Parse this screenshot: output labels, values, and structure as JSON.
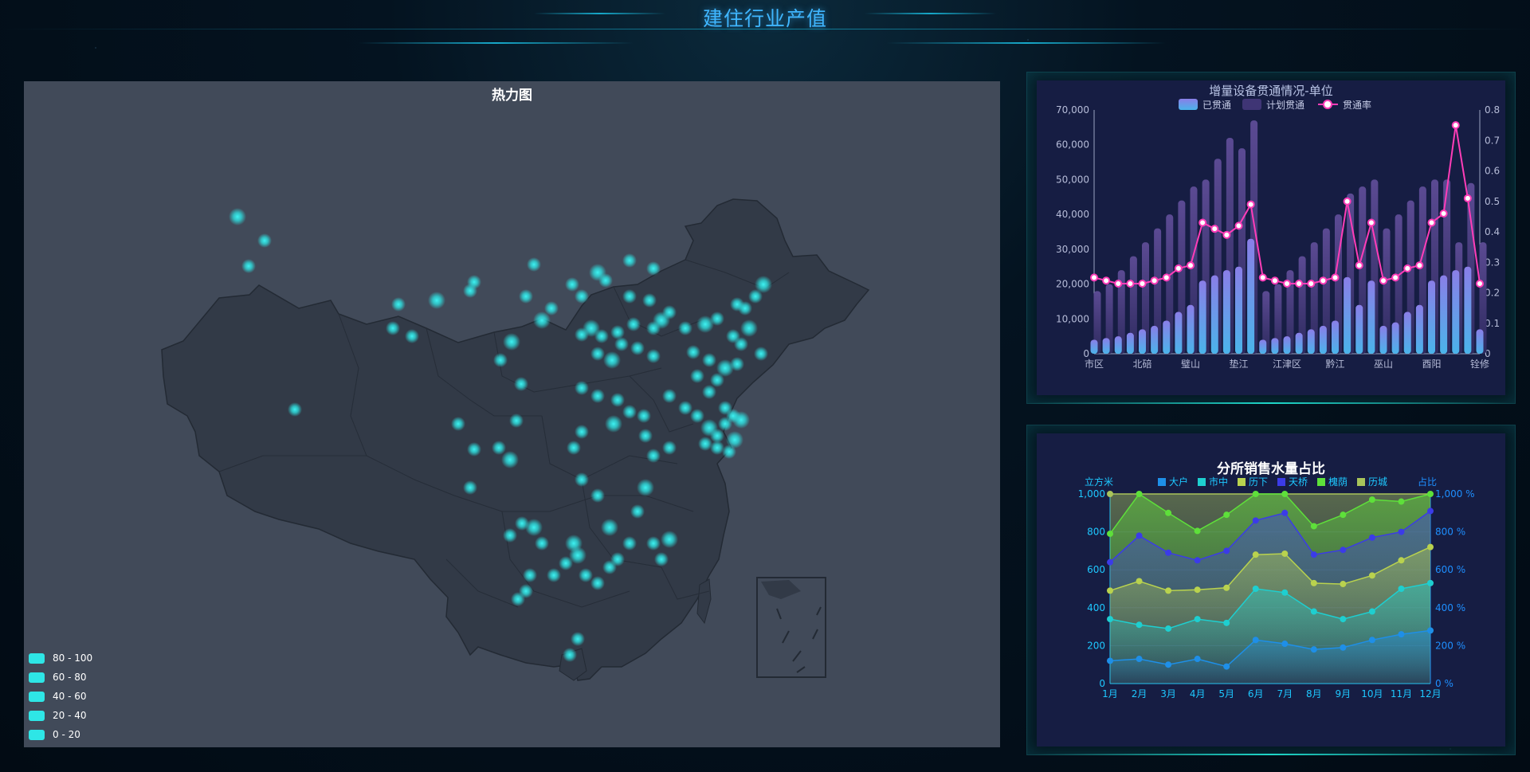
{
  "header": {
    "title": "建住行业产值"
  },
  "map": {
    "title": "热力图",
    "legend": [
      "80 - 100",
      "60 - 80",
      "40 - 60",
      "20 - 40",
      "0 - 20"
    ],
    "heat_color": "#2ee6e6",
    "land_color": "#323a47",
    "background": "#414a59"
  },
  "chart1": {
    "title": "增量设备贯通情况-单位",
    "legend": [
      "已贯通",
      "计划贯通",
      "贯通率"
    ],
    "colors": {
      "done": "#5aa7e6",
      "plan": "#4a3d7a",
      "rate": "#ff3db8"
    },
    "chart_data": {
      "type": "bar",
      "x_tick_labels": [
        "市区",
        "北碚",
        "璧山",
        "垫江",
        "江津区",
        "黔江",
        "巫山",
        "酉阳",
        "铨修"
      ],
      "ylim": [
        0,
        70000
      ],
      "y_ticks": [
        "0",
        "10,000",
        "20,000",
        "30,000",
        "40,000",
        "50,000",
        "60,000",
        "70,000"
      ],
      "y2lim": [
        0,
        0.8
      ],
      "y2_ticks": [
        "0",
        "0.1",
        "0.2",
        "0.3",
        "0.4",
        "0.5",
        "0.6",
        "0.7",
        "0.8"
      ],
      "series": [
        {
          "name": "已贯通",
          "type": "bar",
          "values": [
            4000,
            4500,
            5000,
            6000,
            7000,
            8000,
            9500,
            12000,
            14000,
            21000,
            22500,
            24000,
            25000,
            33000,
            4000,
            4500,
            5000,
            6000,
            7000,
            8000,
            9500,
            22000,
            14000,
            21000,
            8000,
            9000,
            12000,
            14000,
            21000,
            22500,
            24000,
            25000,
            7000
          ]
        },
        {
          "name": "计划贯通",
          "type": "bar",
          "values": [
            18000,
            20000,
            24000,
            28000,
            32000,
            36000,
            40000,
            44000,
            48000,
            50000,
            56000,
            62000,
            59000,
            67000,
            18000,
            20000,
            24000,
            28000,
            32000,
            36000,
            40000,
            46000,
            48000,
            50000,
            36000,
            40000,
            44000,
            48000,
            50000,
            50000,
            32000,
            49000,
            32000
          ]
        },
        {
          "name": "贯通率",
          "type": "line",
          "values": [
            0.25,
            0.24,
            0.23,
            0.23,
            0.23,
            0.24,
            0.25,
            0.28,
            0.29,
            0.43,
            0.41,
            0.39,
            0.42,
            0.49,
            0.25,
            0.24,
            0.23,
            0.23,
            0.23,
            0.24,
            0.25,
            0.5,
            0.29,
            0.43,
            0.24,
            0.25,
            0.28,
            0.29,
            0.43,
            0.46,
            0.75,
            0.51,
            0.23
          ]
        }
      ]
    }
  },
  "chart2": {
    "title": "分所销售水量占比",
    "y_left_label": "立方米",
    "y_right_label": "占比",
    "legend": [
      "大户",
      "市中",
      "历下",
      "天桥",
      "槐荫",
      "历城"
    ],
    "chart_data": {
      "type": "area",
      "x": [
        "1月",
        "2月",
        "3月",
        "4月",
        "5月",
        "6月",
        "7月",
        "8月",
        "9月",
        "10月",
        "11月",
        "12月"
      ],
      "ylim": [
        0,
        1000
      ],
      "y_ticks": [
        "0",
        "200",
        "400",
        "600",
        "800",
        "1,000"
      ],
      "y2_ticks": [
        "0 %",
        "200 %",
        "400 %",
        "600 %",
        "800 %",
        "1,000 %"
      ],
      "series": [
        {
          "name": "大户",
          "color": "#1e8fe8",
          "values": [
            120,
            130,
            100,
            130,
            90,
            230,
            210,
            180,
            190,
            230,
            260,
            280
          ]
        },
        {
          "name": "市中",
          "color": "#1ecfd0",
          "values": [
            340,
            310,
            290,
            340,
            320,
            500,
            480,
            380,
            340,
            380,
            500,
            530
          ]
        },
        {
          "name": "历下",
          "color": "#b9d24e",
          "values": [
            490,
            540,
            490,
            495,
            505,
            680,
            685,
            530,
            525,
            570,
            650,
            720
          ]
        },
        {
          "name": "天桥",
          "color": "#3b3be8",
          "values": [
            640,
            780,
            690,
            650,
            700,
            860,
            900,
            680,
            705,
            770,
            800,
            910
          ]
        },
        {
          "name": "槐荫",
          "color": "#5ee03a",
          "values": [
            790,
            1000,
            900,
            805,
            890,
            1000,
            1000,
            830,
            890,
            970,
            960,
            1000
          ]
        },
        {
          "name": "历城",
          "color": "#a8c45a",
          "values": [
            1000,
            1000,
            1000,
            1000,
            1000,
            1000,
            1000,
            1000,
            1000,
            1000,
            1000,
            1000
          ]
        }
      ]
    }
  }
}
